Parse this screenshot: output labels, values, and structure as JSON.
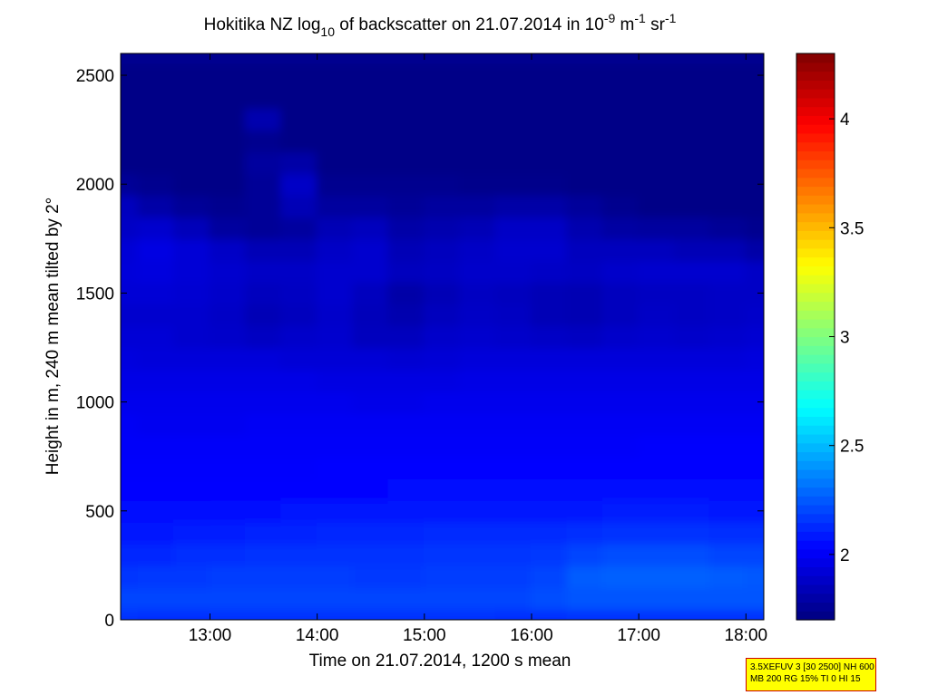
{
  "chart_data": {
    "type": "heatmap",
    "title": {
      "part1": "Hokitika NZ log",
      "sub": "10",
      "part2": " of backscatter on 21.07.2014 in 10",
      "sup1": "-9",
      "part3": " m",
      "sup2": "-1",
      "part4": " sr",
      "sup3": "-1"
    },
    "xlabel": "Time on 21.07.2014, 1200 s mean",
    "ylabel": "Height in m, 240 m mean tilted by 2°",
    "xlim": [
      "12:10",
      "18:10"
    ],
    "ylim": [
      0,
      2600
    ],
    "x_ticks": [
      "13:00",
      "14:00",
      "15:00",
      "16:00",
      "17:00",
      "18:00"
    ],
    "y_ticks": [
      0,
      500,
      1000,
      1500,
      2000,
      2500
    ],
    "colorbar": {
      "clim": [
        1.7,
        4.3
      ],
      "ticks": [
        "2",
        "2.5",
        "3",
        "3.5",
        "4"
      ],
      "colormap": "jet"
    },
    "rows_height_m": [
      0,
      100,
      200,
      300,
      400,
      500,
      600,
      700,
      800,
      900,
      1000,
      1100,
      1200,
      1300,
      1400,
      1500,
      1600,
      1700,
      1800,
      1900,
      2000,
      2100,
      2200,
      2300,
      2400,
      2500
    ],
    "cols_time": [
      "12:10",
      "12:30",
      "12:50",
      "13:10",
      "13:30",
      "13:50",
      "14:10",
      "14:30",
      "14:50",
      "15:10",
      "15:30",
      "15:50",
      "16:10",
      "16:30",
      "16:50",
      "17:10",
      "17:30",
      "17:50",
      "18:10"
    ],
    "values": [
      [
        2.15,
        2.14,
        2.14,
        2.15,
        2.15,
        2.15,
        2.15,
        2.15,
        2.15,
        2.15,
        2.15,
        2.14,
        2.14,
        2.15,
        2.15,
        2.15,
        2.15,
        2.15,
        2.15
      ],
      [
        2.2,
        2.2,
        2.2,
        2.2,
        2.2,
        2.2,
        2.2,
        2.2,
        2.2,
        2.2,
        2.2,
        2.2,
        2.22,
        2.24,
        2.24,
        2.24,
        2.24,
        2.24,
        2.24
      ],
      [
        2.16,
        2.17,
        2.17,
        2.18,
        2.18,
        2.18,
        2.18,
        2.17,
        2.17,
        2.18,
        2.18,
        2.18,
        2.2,
        2.26,
        2.27,
        2.27,
        2.27,
        2.26,
        2.25
      ],
      [
        2.12,
        2.12,
        2.14,
        2.14,
        2.15,
        2.15,
        2.15,
        2.15,
        2.15,
        2.16,
        2.16,
        2.16,
        2.17,
        2.2,
        2.22,
        2.22,
        2.22,
        2.2,
        2.2
      ],
      [
        2.08,
        2.08,
        2.1,
        2.1,
        2.11,
        2.11,
        2.12,
        2.12,
        2.12,
        2.13,
        2.13,
        2.13,
        2.13,
        2.14,
        2.15,
        2.15,
        2.15,
        2.14,
        2.14
      ],
      [
        2.05,
        2.05,
        2.05,
        2.06,
        2.06,
        2.07,
        2.07,
        2.07,
        2.07,
        2.08,
        2.08,
        2.08,
        2.08,
        2.08,
        2.09,
        2.09,
        2.09,
        2.08,
        2.08
      ],
      [
        2.03,
        2.03,
        2.03,
        2.04,
        2.04,
        2.04,
        2.04,
        2.04,
        2.05,
        2.05,
        2.05,
        2.05,
        2.05,
        2.05,
        2.05,
        2.05,
        2.05,
        2.05,
        2.05
      ],
      [
        2.02,
        2.02,
        2.02,
        2.02,
        2.02,
        2.02,
        2.03,
        2.03,
        2.03,
        2.03,
        2.03,
        2.03,
        2.03,
        2.03,
        2.03,
        2.03,
        2.03,
        2.03,
        2.03
      ],
      [
        2.01,
        2.01,
        2.01,
        2.01,
        2.01,
        2.01,
        2.01,
        2.01,
        2.01,
        2.01,
        2.01,
        2.01,
        2.01,
        2.01,
        2.01,
        2.02,
        2.02,
        2.02,
        2.02
      ],
      [
        2.0,
        1.99,
        1.99,
        1.99,
        2.0,
        2.0,
        2.0,
        2.0,
        2.0,
        2.0,
        2.0,
        2.0,
        2.0,
        2.0,
        2.0,
        2.0,
        2.0,
        2.0,
        2.0
      ],
      [
        1.98,
        1.98,
        1.98,
        1.98,
        1.98,
        1.98,
        1.98,
        1.97,
        1.97,
        1.98,
        1.98,
        1.98,
        1.98,
        1.98,
        1.98,
        1.98,
        1.98,
        1.98,
        1.98
      ],
      [
        1.96,
        1.96,
        1.96,
        1.96,
        1.96,
        1.96,
        1.95,
        1.95,
        1.95,
        1.95,
        1.96,
        1.96,
        1.96,
        1.96,
        1.96,
        1.96,
        1.96,
        1.96,
        1.96
      ],
      [
        1.94,
        1.93,
        1.93,
        1.93,
        1.93,
        1.92,
        1.92,
        1.92,
        1.91,
        1.92,
        1.93,
        1.93,
        1.93,
        1.93,
        1.93,
        1.93,
        1.93,
        1.93,
        1.94
      ],
      [
        1.92,
        1.92,
        1.9,
        1.89,
        1.87,
        1.89,
        1.9,
        1.86,
        1.86,
        1.89,
        1.9,
        1.89,
        1.88,
        1.87,
        1.89,
        1.9,
        1.89,
        1.9,
        1.91
      ],
      [
        1.9,
        1.9,
        1.9,
        1.88,
        1.84,
        1.86,
        1.89,
        1.85,
        1.82,
        1.86,
        1.88,
        1.87,
        1.84,
        1.83,
        1.86,
        1.88,
        1.87,
        1.88,
        1.89
      ],
      [
        1.92,
        1.92,
        1.91,
        1.89,
        1.86,
        1.87,
        1.9,
        1.86,
        1.8,
        1.84,
        1.87,
        1.86,
        1.84,
        1.83,
        1.86,
        1.87,
        1.87,
        1.88,
        1.88
      ],
      [
        1.93,
        1.94,
        1.92,
        1.9,
        1.88,
        1.88,
        1.9,
        1.9,
        1.86,
        1.87,
        1.89,
        1.89,
        1.88,
        1.87,
        1.89,
        1.9,
        1.9,
        1.9,
        1.88
      ],
      [
        1.92,
        1.95,
        1.92,
        1.88,
        1.84,
        1.84,
        1.88,
        1.9,
        1.84,
        1.86,
        1.88,
        1.9,
        1.9,
        1.86,
        1.86,
        1.86,
        1.84,
        1.84,
        1.8
      ],
      [
        1.88,
        1.9,
        1.85,
        1.78,
        1.76,
        1.78,
        1.84,
        1.86,
        1.8,
        1.82,
        1.84,
        1.88,
        1.88,
        1.82,
        1.79,
        1.78,
        1.78,
        1.76,
        1.74
      ],
      [
        1.86,
        1.8,
        1.76,
        1.74,
        1.76,
        1.84,
        1.78,
        1.78,
        1.76,
        1.78,
        1.78,
        1.8,
        1.8,
        1.77,
        1.74,
        1.72,
        1.72,
        1.72,
        1.72
      ],
      [
        1.76,
        1.74,
        1.72,
        1.72,
        1.76,
        1.88,
        1.74,
        1.74,
        1.74,
        1.74,
        1.73,
        1.73,
        1.73,
        1.72,
        1.72,
        1.72,
        1.72,
        1.72,
        1.72
      ],
      [
        1.72,
        1.72,
        1.72,
        1.72,
        1.78,
        1.8,
        1.72,
        1.72,
        1.72,
        1.72,
        1.72,
        1.72,
        1.72,
        1.72,
        1.72,
        1.72,
        1.72,
        1.72,
        1.72
      ],
      [
        1.72,
        1.72,
        1.72,
        1.72,
        1.74,
        1.72,
        1.72,
        1.72,
        1.72,
        1.72,
        1.72,
        1.72,
        1.72,
        1.72,
        1.72,
        1.72,
        1.72,
        1.72,
        1.72
      ],
      [
        1.72,
        1.72,
        1.72,
        1.72,
        1.82,
        1.72,
        1.72,
        1.72,
        1.72,
        1.72,
        1.72,
        1.72,
        1.72,
        1.72,
        1.72,
        1.72,
        1.72,
        1.72,
        1.72
      ],
      [
        1.72,
        1.72,
        1.72,
        1.72,
        1.72,
        1.72,
        1.72,
        1.72,
        1.72,
        1.72,
        1.72,
        1.72,
        1.72,
        1.72,
        1.72,
        1.72,
        1.72,
        1.72,
        1.72
      ],
      [
        1.72,
        1.72,
        1.72,
        1.72,
        1.72,
        1.72,
        1.72,
        1.72,
        1.72,
        1.72,
        1.72,
        1.72,
        1.72,
        1.72,
        1.72,
        1.72,
        1.72,
        1.72,
        1.72
      ]
    ]
  },
  "info_box": {
    "line1": "3.5XEFUV 3 [30 2500] NH 600",
    "line2": "MB 200 RG 15% TI 0 HI 15"
  }
}
